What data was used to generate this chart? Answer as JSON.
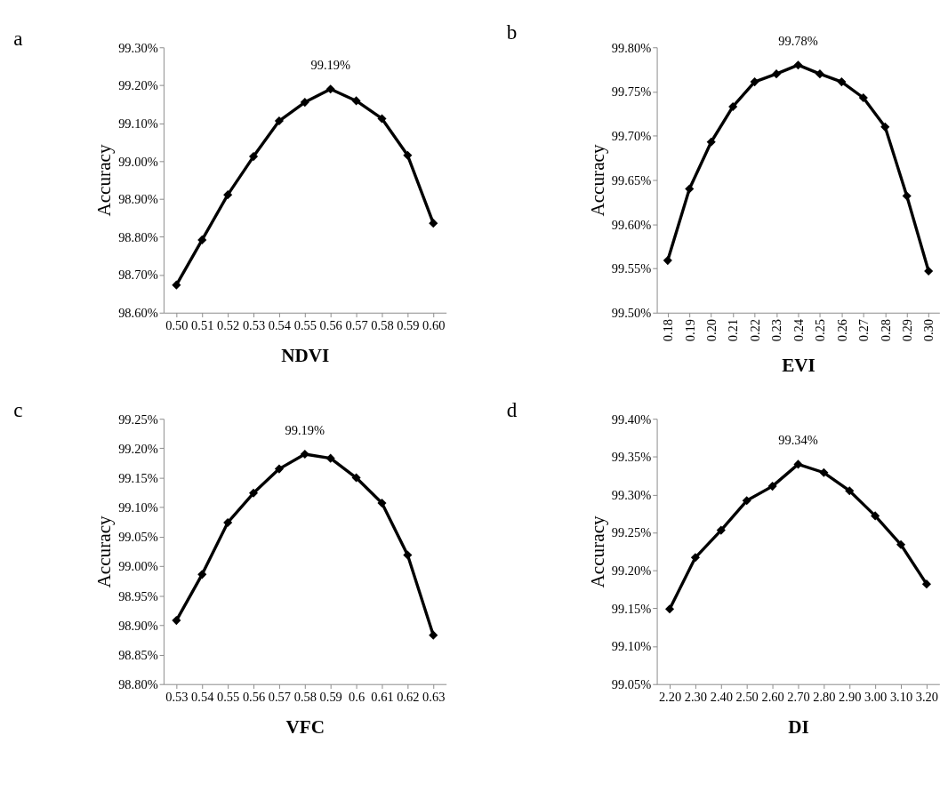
{
  "chart_data": [
    {
      "type": "line",
      "title": "a",
      "xlabel": "NDVI",
      "ylabel": "Accuracy",
      "categories": [
        "0.50",
        "0.51",
        "0.52",
        "0.53",
        "0.54",
        "0.55",
        "0.56",
        "0.57",
        "0.58",
        "0.59",
        "0.60"
      ],
      "series": [
        {
          "color": "#000000",
          "values": [
            98.673,
            98.792,
            98.911,
            99.012,
            99.106,
            99.155,
            99.19,
            99.159,
            99.112,
            99.015,
            98.836
          ]
        }
      ],
      "ylim": [
        98.6,
        99.3
      ],
      "yticks": [
        {
          "value": 98.6,
          "label": "98.60%"
        },
        {
          "value": 98.7,
          "label": "98.70%"
        },
        {
          "value": 98.8,
          "label": "98.80%"
        },
        {
          "value": 98.9,
          "label": "98.90%"
        },
        {
          "value": 99.0,
          "label": "99.00%"
        },
        {
          "value": 99.1,
          "label": "99.10%"
        },
        {
          "value": 99.2,
          "label": "99.20%"
        },
        {
          "value": 99.3,
          "label": "99.30%"
        }
      ],
      "annotations": [
        {
          "text": "99.19%",
          "x": "0.56",
          "y": 99.19
        }
      ],
      "marker": "diamond",
      "grid": false
    },
    {
      "type": "line",
      "title": "b",
      "xlabel": "EVI",
      "ylabel": "Accuracy",
      "categories": [
        "0.18",
        "0.19",
        "0.20",
        "0.21",
        "0.22",
        "0.23",
        "0.24",
        "0.25",
        "0.26",
        "0.27",
        "0.28",
        "0.29",
        "0.30"
      ],
      "series": [
        {
          "color": "#000000",
          "values": [
            99.559,
            99.64,
            99.693,
            99.733,
            99.761,
            99.77,
            99.78,
            99.77,
            99.761,
            99.743,
            99.71,
            99.632,
            99.547
          ]
        }
      ],
      "ylim": [
        99.5,
        99.8
      ],
      "yticks": [
        {
          "value": 99.5,
          "label": "99.50%"
        },
        {
          "value": 99.55,
          "label": "99.55%"
        },
        {
          "value": 99.6,
          "label": "99.60%"
        },
        {
          "value": 99.65,
          "label": "99.65%"
        },
        {
          "value": 99.7,
          "label": "99.70%"
        },
        {
          "value": 99.75,
          "label": "99.75%"
        },
        {
          "value": 99.8,
          "label": "99.80%"
        }
      ],
      "annotations": [
        {
          "text": "99.78%",
          "x": "0.24",
          "y": 99.78
        }
      ],
      "marker": "diamond",
      "grid": false
    },
    {
      "type": "line",
      "title": "c",
      "xlabel": "VFC",
      "ylabel": "Accuracy",
      "categories": [
        "0.53",
        "0.54",
        "0.55",
        "0.56",
        "0.57",
        "0.58",
        "0.59",
        "0.6",
        "0.61",
        "0.62",
        "0.63"
      ],
      "series": [
        {
          "color": "#000000",
          "values": [
            98.908,
            98.986,
            99.074,
            99.124,
            99.165,
            99.19,
            99.183,
            99.15,
            99.107,
            99.019,
            98.883
          ]
        }
      ],
      "ylim": [
        98.8,
        99.25
      ],
      "yticks": [
        {
          "value": 98.8,
          "label": "98.80%"
        },
        {
          "value": 98.85,
          "label": "98.85%"
        },
        {
          "value": 98.9,
          "label": "98.90%"
        },
        {
          "value": 98.95,
          "label": "98.95%"
        },
        {
          "value": 99.0,
          "label": "99.00%"
        },
        {
          "value": 99.05,
          "label": "99.05%"
        },
        {
          "value": 99.1,
          "label": "99.10%"
        },
        {
          "value": 99.15,
          "label": "99.15%"
        },
        {
          "value": 99.2,
          "label": "99.20%"
        },
        {
          "value": 99.25,
          "label": "99.25%"
        }
      ],
      "annotations": [
        {
          "text": "99.19%",
          "x": "0.58",
          "y": 99.19
        }
      ],
      "marker": "diamond",
      "grid": false
    },
    {
      "type": "line",
      "title": "d",
      "xlabel": "DI",
      "ylabel": "Accuracy",
      "categories": [
        "2.20",
        "2.30",
        "2.40",
        "2.50",
        "2.60",
        "2.70",
        "2.80",
        "2.90",
        "3.00",
        "3.10",
        "3.20"
      ],
      "series": [
        {
          "color": "#000000",
          "values": [
            99.149,
            99.217,
            99.253,
            99.292,
            99.311,
            99.34,
            99.329,
            99.305,
            99.272,
            99.234,
            99.182
          ]
        }
      ],
      "ylim": [
        99.05,
        99.4
      ],
      "yticks": [
        {
          "value": 99.05,
          "label": "99.05%"
        },
        {
          "value": 99.1,
          "label": "99.10%"
        },
        {
          "value": 99.15,
          "label": "99.15%"
        },
        {
          "value": 99.2,
          "label": "99.20%"
        },
        {
          "value": 99.25,
          "label": "99.25%"
        },
        {
          "value": 99.3,
          "label": "99.30%"
        },
        {
          "value": 99.35,
          "label": "99.35%"
        },
        {
          "value": 99.4,
          "label": "99.40%"
        }
      ],
      "annotations": [
        {
          "text": "99.34%",
          "x": "2.70",
          "y": 99.34
        }
      ],
      "marker": "diamond",
      "grid": false
    }
  ]
}
